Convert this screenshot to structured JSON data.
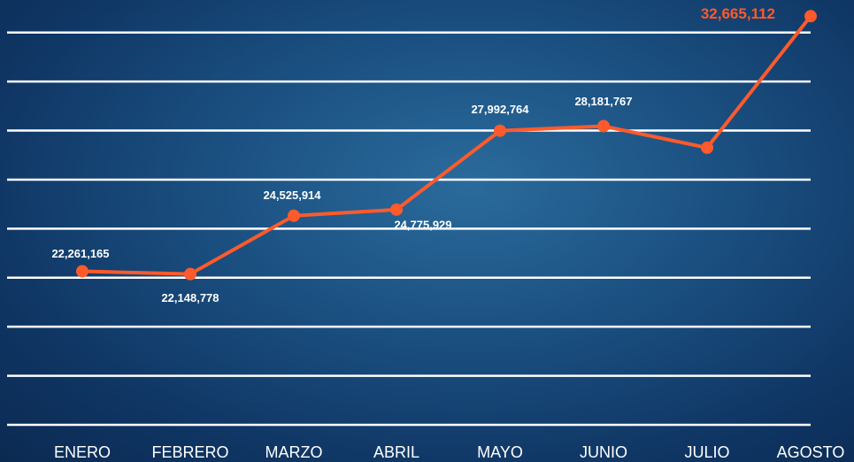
{
  "chart_data": {
    "type": "line",
    "categories": [
      "ENERO",
      "FEBRERO",
      "MARZO",
      "ABRIL",
      "MAYO",
      "JUNIO",
      "JULIO",
      "AGOSTO"
    ],
    "series": [
      {
        "color": "#ff5a2b",
        "values": [
          22261165,
          22148778,
          24525914,
          24775929,
          27992764,
          28181767,
          27300000,
          32665112
        ],
        "value_labels": [
          "22,261,165",
          "22,148,778",
          "24,525,914",
          "24,775,929",
          "27,992,764",
          "28,181,767",
          null,
          "32,665,112"
        ]
      }
    ],
    "ylim": [
      16000000,
      33000000
    ],
    "yticks": [
      16000000,
      18000000,
      20000000,
      22000000,
      24000000,
      26000000,
      28000000,
      30000000,
      32000000
    ],
    "grid": true
  }
}
